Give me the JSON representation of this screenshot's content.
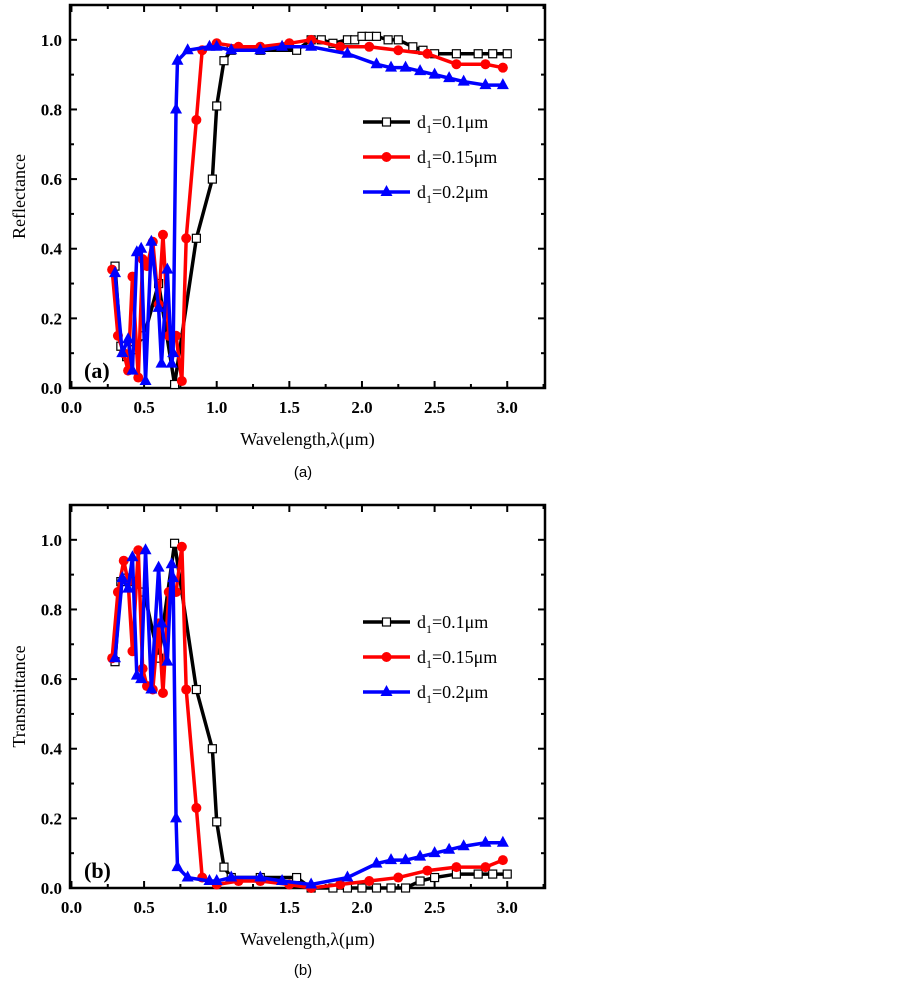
{
  "chart_data": [
    {
      "type": "line",
      "panel_label": "(a)",
      "caption": "(a)",
      "xlabel": "Wavelength,λ(μm)",
      "ylabel": "Reflectance",
      "xlim": [
        -0.01,
        3.26
      ],
      "ylim": [
        0,
        1.1
      ],
      "xticks": [
        "0.0",
        "0.5",
        "1.0",
        "1.5",
        "2.0",
        "2.5",
        "3.0"
      ],
      "yticks": [
        "0.0",
        "0.2",
        "0.4",
        "0.6",
        "0.8",
        "1.0"
      ],
      "grid": false,
      "legend_position": "right-middle",
      "series": [
        {
          "name": "d1=0.1μm",
          "legend_main": "d",
          "legend_sub": "1",
          "legend_rest": "=0.1μm",
          "color": "#000000",
          "marker": "open-square",
          "x": [
            0.3,
            0.34,
            0.38,
            0.42,
            0.5,
            0.6,
            0.71,
            0.86,
            0.97,
            1.0,
            1.05,
            1.1,
            1.3,
            1.55,
            1.65,
            1.72,
            1.8,
            1.9,
            1.95,
            2.0,
            2.05,
            2.1,
            2.18,
            2.25,
            2.35,
            2.42,
            2.5,
            2.65,
            2.8,
            2.9,
            3.0
          ],
          "y": [
            0.35,
            0.12,
            0.09,
            0.11,
            0.15,
            0.3,
            0.01,
            0.43,
            0.6,
            0.81,
            0.94,
            0.97,
            0.97,
            0.97,
            1.0,
            1.0,
            0.99,
            1.0,
            1.0,
            1.01,
            1.01,
            1.01,
            1.0,
            1.0,
            0.98,
            0.97,
            0.96,
            0.96,
            0.96,
            0.96,
            0.96
          ]
        },
        {
          "name": "d1=0.15μm",
          "legend_main": "d",
          "legend_sub": "1",
          "legend_rest": "=0.15μm",
          "color": "#ff0000",
          "marker": "filled-circle",
          "x": [
            0.28,
            0.32,
            0.36,
            0.39,
            0.42,
            0.46,
            0.49,
            0.52,
            0.56,
            0.6,
            0.63,
            0.67,
            0.72,
            0.76,
            0.79,
            0.86,
            0.9,
            1.0,
            1.15,
            1.3,
            1.5,
            1.65,
            1.85,
            2.05,
            2.25,
            2.45,
            2.65,
            2.85,
            2.97
          ],
          "y": [
            0.34,
            0.15,
            0.1,
            0.05,
            0.32,
            0.03,
            0.37,
            0.35,
            0.42,
            0.24,
            0.44,
            0.15,
            0.15,
            0.02,
            0.43,
            0.77,
            0.97,
            0.99,
            0.98,
            0.98,
            0.99,
            1.0,
            0.98,
            0.98,
            0.97,
            0.96,
            0.93,
            0.93,
            0.92
          ]
        },
        {
          "name": "d1=0.2μm",
          "legend_main": "d",
          "legend_sub": "1",
          "legend_rest": "=0.2μm",
          "color": "#0000ff",
          "marker": "filled-triangle",
          "x": [
            0.3,
            0.35,
            0.39,
            0.42,
            0.45,
            0.48,
            0.51,
            0.55,
            0.6,
            0.62,
            0.66,
            0.69,
            0.7,
            0.72,
            0.73,
            0.8,
            0.95,
            1.0,
            1.1,
            1.3,
            1.45,
            1.65,
            1.9,
            2.1,
            2.2,
            2.3,
            2.4,
            2.5,
            2.6,
            2.7,
            2.85,
            2.97
          ],
          "y": [
            0.33,
            0.1,
            0.14,
            0.05,
            0.39,
            0.4,
            0.02,
            0.42,
            0.23,
            0.07,
            0.34,
            0.07,
            0.1,
            0.8,
            0.94,
            0.97,
            0.98,
            0.98,
            0.97,
            0.97,
            0.98,
            0.98,
            0.96,
            0.93,
            0.92,
            0.92,
            0.91,
            0.9,
            0.89,
            0.88,
            0.87,
            0.87
          ]
        }
      ]
    },
    {
      "type": "line",
      "panel_label": "(b)",
      "caption": "(b)",
      "xlabel": "Wavelength,λ(μm)",
      "ylabel": "Transmittance",
      "xlim": [
        -0.01,
        3.26
      ],
      "ylim": [
        0,
        1.1
      ],
      "xticks": [
        "0.0",
        "0.5",
        "1.0",
        "1.5",
        "2.0",
        "2.5",
        "3.0"
      ],
      "yticks": [
        "0.0",
        "0.2",
        "0.4",
        "0.6",
        "0.8",
        "1.0"
      ],
      "grid": false,
      "legend_position": "right-middle",
      "series": [
        {
          "name": "d1=0.1μm",
          "legend_main": "d",
          "legend_sub": "1",
          "legend_rest": "=0.1μm",
          "color": "#000000",
          "marker": "open-square",
          "x": [
            0.3,
            0.34,
            0.38,
            0.42,
            0.5,
            0.6,
            0.71,
            0.86,
            0.97,
            1.0,
            1.05,
            1.1,
            1.3,
            1.55,
            1.65,
            1.8,
            1.9,
            2.0,
            2.1,
            2.2,
            2.3,
            2.4,
            2.5,
            2.65,
            2.8,
            2.9,
            3.0
          ],
          "y": [
            0.65,
            0.88,
            0.89,
            0.88,
            0.85,
            0.66,
            0.99,
            0.57,
            0.4,
            0.19,
            0.06,
            0.03,
            0.03,
            0.03,
            0.0,
            0.0,
            0.0,
            0.0,
            0.0,
            0.0,
            0.0,
            0.02,
            0.03,
            0.04,
            0.04,
            0.04,
            0.04
          ]
        },
        {
          "name": "d1=0.15μm",
          "legend_main": "d",
          "legend_sub": "1",
          "legend_rest": "=0.15μm",
          "color": "#ff0000",
          "marker": "filled-circle",
          "x": [
            0.28,
            0.32,
            0.36,
            0.39,
            0.42,
            0.46,
            0.49,
            0.52,
            0.56,
            0.6,
            0.63,
            0.67,
            0.72,
            0.76,
            0.79,
            0.86,
            0.9,
            1.0,
            1.15,
            1.3,
            1.5,
            1.65,
            1.85,
            2.05,
            2.25,
            2.45,
            2.65,
            2.85,
            2.97
          ],
          "y": [
            0.66,
            0.85,
            0.94,
            0.88,
            0.68,
            0.97,
            0.63,
            0.58,
            0.57,
            0.76,
            0.56,
            0.85,
            0.85,
            0.98,
            0.57,
            0.23,
            0.03,
            0.01,
            0.02,
            0.02,
            0.01,
            0.0,
            0.01,
            0.02,
            0.03,
            0.05,
            0.06,
            0.06,
            0.08
          ]
        },
        {
          "name": "d1=0.2μm",
          "legend_main": "d",
          "legend_sub": "1",
          "legend_rest": "=0.2μm",
          "color": "#0000ff",
          "marker": "filled-triangle",
          "x": [
            0.3,
            0.35,
            0.39,
            0.42,
            0.45,
            0.48,
            0.51,
            0.55,
            0.6,
            0.62,
            0.66,
            0.69,
            0.7,
            0.72,
            0.73,
            0.8,
            0.95,
            1.0,
            1.1,
            1.3,
            1.45,
            1.65,
            1.9,
            2.1,
            2.2,
            2.3,
            2.4,
            2.5,
            2.6,
            2.7,
            2.85,
            2.97
          ],
          "y": [
            0.66,
            0.89,
            0.86,
            0.95,
            0.61,
            0.6,
            0.97,
            0.57,
            0.92,
            0.76,
            0.65,
            0.93,
            0.89,
            0.2,
            0.06,
            0.03,
            0.02,
            0.02,
            0.03,
            0.03,
            0.02,
            0.01,
            0.03,
            0.07,
            0.08,
            0.08,
            0.09,
            0.1,
            0.11,
            0.12,
            0.13,
            0.13
          ]
        }
      ]
    }
  ]
}
